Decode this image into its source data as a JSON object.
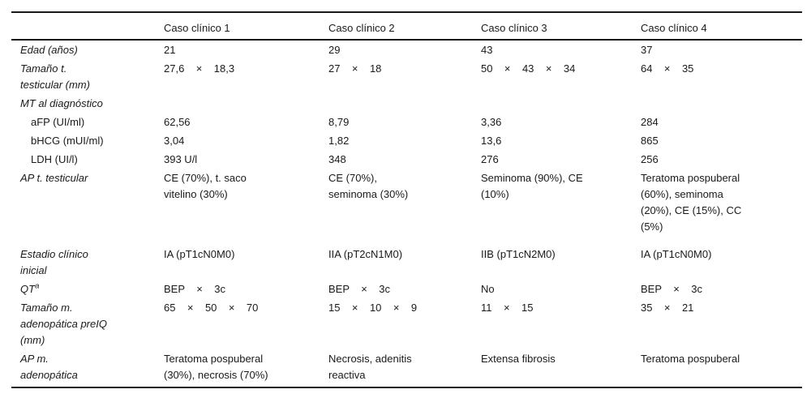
{
  "colors": {
    "background": "#ffffff",
    "text": "#1a1a1a",
    "rule": "#1a1a1a"
  },
  "table": {
    "columns": [
      "",
      "Caso clínico 1",
      "Caso clínico 2",
      "Caso clínico 3",
      "Caso clínico 4"
    ],
    "rows": [
      {
        "label": "Edad (años)",
        "italic": true,
        "indent": false,
        "sup": "",
        "values": [
          "21",
          "29",
          "43",
          "37"
        ]
      },
      {
        "label": "Tamaño t.\ntesticular (mm)",
        "italic": true,
        "indent": false,
        "sup": "",
        "values": [
          "27,6    ×    18,3",
          "27    ×    18",
          "50    ×    43    ×    34",
          "64    ×    35"
        ]
      },
      {
        "label": "MT al diagnóstico",
        "italic": true,
        "indent": false,
        "sup": "",
        "values": [
          "",
          "",
          "",
          ""
        ]
      },
      {
        "label": "aFP (UI/ml)",
        "italic": false,
        "indent": true,
        "sup": "",
        "values": [
          "62,56",
          "8,79",
          "3,36",
          "284"
        ]
      },
      {
        "label": "bHCG (mUI/ml)",
        "italic": false,
        "indent": true,
        "sup": "",
        "values": [
          "3,04",
          "1,82",
          "13,6",
          "865"
        ]
      },
      {
        "label": "LDH (UI/l)",
        "italic": false,
        "indent": true,
        "sup": "",
        "values": [
          "393 U/l",
          "348",
          "276",
          "256"
        ]
      },
      {
        "label": "AP t. testicular",
        "italic": true,
        "indent": false,
        "sup": "",
        "pad_after": true,
        "values": [
          "CE (70%), t. saco\nvitelino (30%)",
          "CE (70%),\nseminoma (30%)",
          "Seminoma (90%), CE\n(10%)",
          "Teratoma pospuberal\n(60%), seminoma\n(20%), CE (15%), CC\n(5%)"
        ]
      },
      {
        "label": "Estadio clínico\ninicial",
        "italic": true,
        "indent": false,
        "sup": "",
        "values": [
          "IA (pT1cN0M0)",
          "IIA (pT2cN1M0)",
          "IIB (pT1cN2M0)",
          "IA (pT1cN0M0)"
        ]
      },
      {
        "label": "QT",
        "italic": true,
        "indent": false,
        "sup": "a",
        "values": [
          "BEP    ×    3c",
          "BEP    ×    3c",
          "No",
          "BEP    ×    3c"
        ]
      },
      {
        "label": "Tamaño m.\nadenopática preIQ\n(mm)",
        "italic": true,
        "indent": false,
        "sup": "",
        "values": [
          "65    ×    50    ×    70",
          "15    ×    10    ×    9",
          "11    ×    15",
          "35    ×    21"
        ]
      },
      {
        "label": "AP m.\nadenopática",
        "italic": true,
        "indent": false,
        "sup": "",
        "values": [
          "Teratoma pospuberal\n(30%), necrosis (70%)",
          "Necrosis, adenitis\nreactiva",
          "Extensa fibrosis",
          "Teratoma pospuberal"
        ]
      }
    ]
  }
}
